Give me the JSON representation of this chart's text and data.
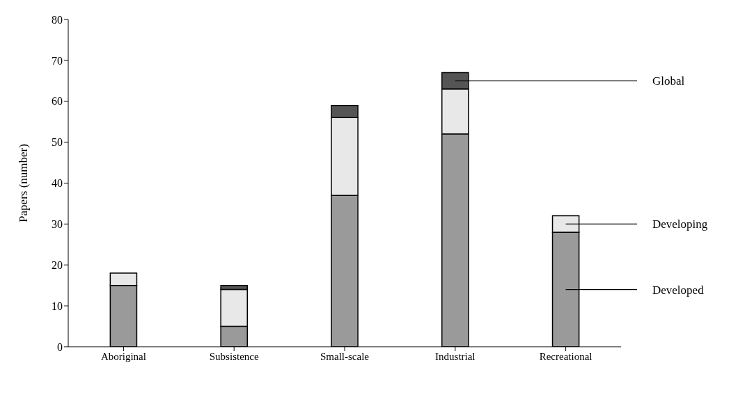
{
  "chart_data": {
    "type": "bar",
    "stacked": true,
    "ylabel": "Papers (number)",
    "categories": [
      "Aboriginal",
      "Subsistence",
      "Small-scale",
      "Industrial",
      "Recreational"
    ],
    "series": [
      {
        "name": "Developed",
        "color": "#9a9a9a",
        "values": [
          15,
          5,
          37,
          52,
          28
        ]
      },
      {
        "name": "Developing",
        "color": "#e8e8e8",
        "values": [
          3,
          9,
          19,
          11,
          4
        ]
      },
      {
        "name": "Global",
        "color": "#555555",
        "values": [
          0,
          1,
          3,
          4,
          0
        ]
      }
    ],
    "ylim": [
      0,
      80
    ],
    "yticks": [
      0,
      10,
      20,
      30,
      40,
      50,
      60,
      70,
      80
    ],
    "grid": false,
    "legend": false
  }
}
